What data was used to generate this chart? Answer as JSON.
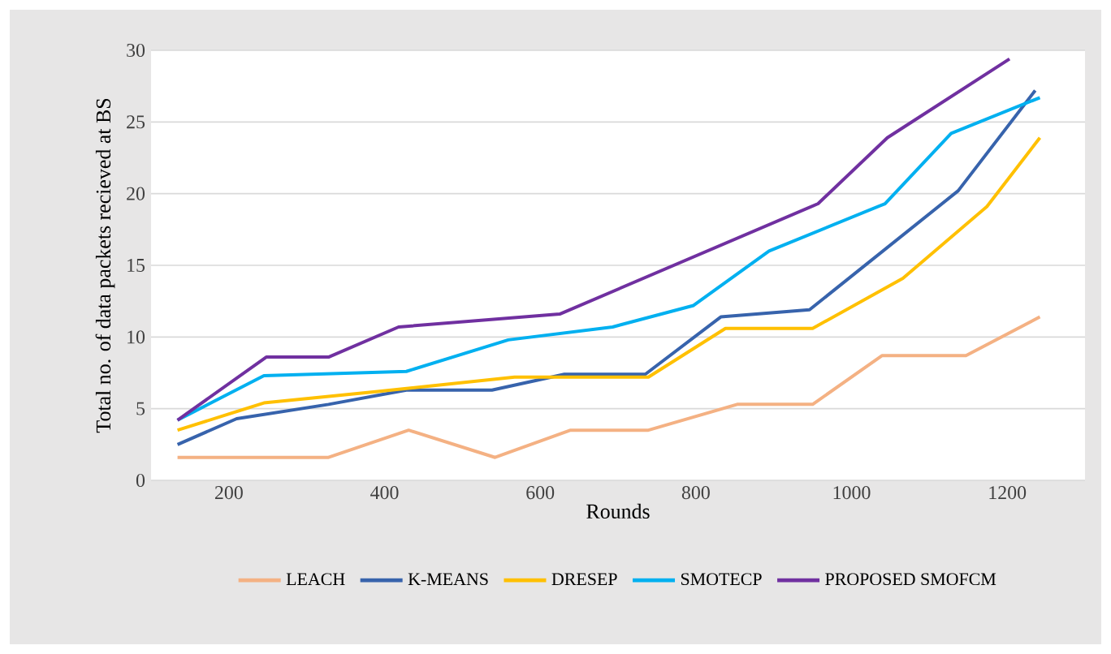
{
  "chart_data": {
    "type": "line",
    "xlabel": "Rounds",
    "ylabel": "Total no. of data packets recieved at BS",
    "xlim": [
      100,
      1300
    ],
    "xticks": [
      200,
      400,
      600,
      800,
      1000,
      1200
    ],
    "ylim": [
      0,
      30
    ],
    "yticks": [
      0,
      5,
      10,
      15,
      20,
      25,
      30
    ],
    "grid": "y",
    "legend": "bottom",
    "marker": "none",
    "line_style": "solid",
    "series": [
      {
        "name": "LEACH",
        "color": "#f4b183",
        "x": [
          134,
          328,
          431,
          542,
          639,
          739,
          853,
          950,
          1039,
          1147,
          1242
        ],
        "values": [
          1.6,
          1.6,
          3.5,
          1.6,
          3.5,
          3.5,
          5.3,
          5.3,
          8.7,
          8.7,
          11.4
        ]
      },
      {
        "name": "K-MEANS",
        "color": "#3763ac",
        "x": [
          134,
          210,
          328,
          428,
          538,
          631,
          735,
          832,
          946,
          1137,
          1236
        ],
        "values": [
          2.5,
          4.3,
          5.3,
          6.3,
          6.3,
          7.4,
          7.4,
          11.4,
          11.9,
          20.2,
          27.2
        ]
      },
      {
        "name": "DRESEP",
        "color": "#ffc000",
        "x": [
          134,
          245,
          391,
          567,
          739,
          838,
          950,
          1066,
          1174,
          1242
        ],
        "values": [
          3.5,
          5.4,
          6.2,
          7.2,
          7.2,
          10.6,
          10.6,
          14.1,
          19.1,
          23.9
        ]
      },
      {
        "name": "SMOTECP",
        "color": "#00b0f0",
        "x": [
          134,
          245,
          428,
          559,
          693,
          797,
          894,
          1043,
          1128,
          1242
        ],
        "values": [
          4.2,
          7.3,
          7.6,
          9.8,
          10.7,
          12.2,
          16.0,
          19.3,
          24.2,
          26.7
        ]
      },
      {
        "name": "PROPOSED SMOFCM",
        "color": "#7030a0",
        "x": [
          134,
          248,
          328,
          418,
          625,
          957,
          1046,
          1203
        ],
        "values": [
          4.2,
          8.6,
          8.6,
          10.7,
          11.6,
          19.3,
          23.9,
          29.4
        ]
      }
    ]
  }
}
